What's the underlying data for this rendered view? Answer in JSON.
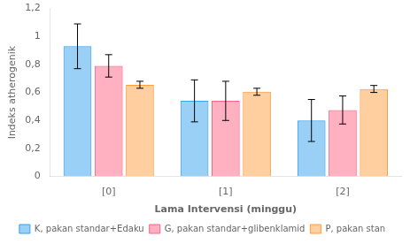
{
  "chart_data": {
    "type": "bar",
    "categories": [
      "[0]",
      "[1]",
      "[2]"
    ],
    "series": [
      {
        "name": "K, pakan standar+Edaku",
        "values": [
          0.93,
          0.54,
          0.4
        ],
        "errors": [
          0.16,
          0.15,
          0.15
        ]
      },
      {
        "name": "G, pakan standar+glibenklamid",
        "values": [
          0.79,
          0.54,
          0.475
        ],
        "errors": [
          0.08,
          0.14,
          0.1
        ]
      },
      {
        "name": "P, pakan stan",
        "values": [
          0.655,
          0.605,
          0.625
        ],
        "errors": [
          0.025,
          0.025,
          0.025
        ]
      }
    ],
    "xlabel": "Lama Intervensi (minggu)",
    "ylabel": "Indeks atherogenik",
    "ylim": [
      0,
      1.2
    ],
    "yticks": [
      0,
      {
        "value": 0.2,
        "label": "0,2"
      },
      {
        "value": 0.4,
        "label": "0,4"
      },
      {
        "value": 0.6,
        "label": "0,6"
      },
      {
        "value": 0.8,
        "label": "0,8"
      },
      1,
      {
        "value": 1.2,
        "label": "1,2"
      }
    ],
    "grid": false,
    "legend": "bottom"
  }
}
